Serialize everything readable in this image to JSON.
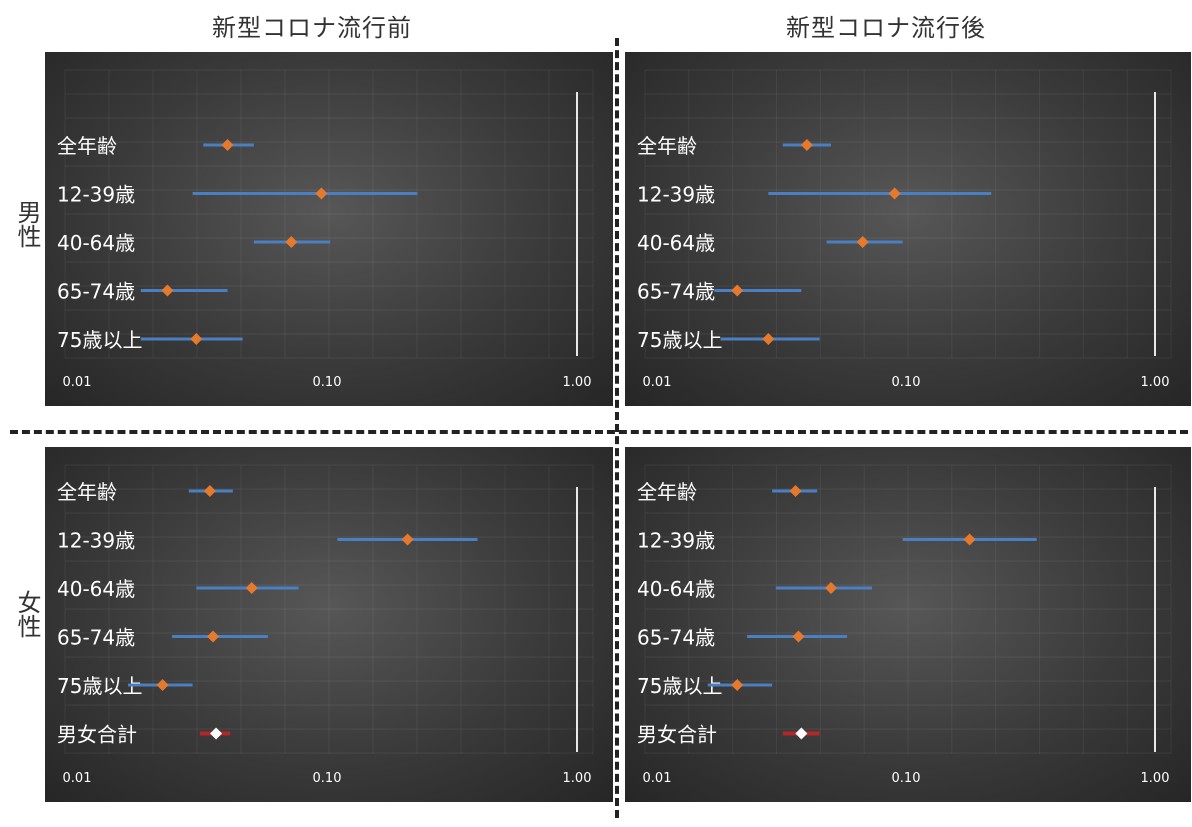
{
  "column_titles": [
    "新型コロナ流行前",
    "新型コロナ流行後"
  ],
  "row_labels": [
    "男性",
    "女性"
  ],
  "colors": {
    "ci_line": "#4a7fc1",
    "marker_group": "#e57a2e",
    "marker_total": "#ffffff",
    "ci_total": "#b3262a",
    "text": "#ffffff"
  },
  "chart_data": [
    {
      "type": "forest",
      "scale": "log",
      "xlim": [
        0.01,
        1.0
      ],
      "xticks": [
        "0.01",
        "0.10",
        "1.00"
      ],
      "categories": [
        "全年齢",
        "12-39歳",
        "40-64歳",
        "65-74歳",
        "75歳以上"
      ],
      "points": [
        {
          "label": "全年齢",
          "value": 0.04,
          "low": 0.032,
          "high": 0.051
        },
        {
          "label": "12-39歳",
          "value": 0.095,
          "low": 0.029,
          "high": 0.23
        },
        {
          "label": "40-64歳",
          "value": 0.072,
          "low": 0.051,
          "high": 0.103
        },
        {
          "label": "65-74歳",
          "value": 0.023,
          "low": 0.018,
          "high": 0.04
        },
        {
          "label": "75歳以上",
          "value": 0.03,
          "low": 0.018,
          "high": 0.046
        }
      ]
    },
    {
      "type": "forest",
      "scale": "log",
      "xlim": [
        0.01,
        1.0
      ],
      "xticks": [
        "0.01",
        "0.10",
        "1.00"
      ],
      "categories": [
        "全年齢",
        "12-39歳",
        "40-64歳",
        "65-74歳",
        "75歳以上"
      ],
      "points": [
        {
          "label": "全年齢",
          "value": 0.04,
          "low": 0.032,
          "high": 0.05
        },
        {
          "label": "12-39歳",
          "value": 0.09,
          "low": 0.028,
          "high": 0.22
        },
        {
          "label": "40-64歳",
          "value": 0.067,
          "low": 0.048,
          "high": 0.097
        },
        {
          "label": "65-74歳",
          "value": 0.021,
          "low": 0.017,
          "high": 0.038
        },
        {
          "label": "75歳以上",
          "value": 0.028,
          "low": 0.018,
          "high": 0.045
        }
      ]
    },
    {
      "type": "forest",
      "scale": "log",
      "xlim": [
        0.01,
        1.0
      ],
      "xticks": [
        "0.01",
        "0.10",
        "1.00"
      ],
      "categories": [
        "全年齢",
        "12-39歳",
        "40-64歳",
        "65-74歳",
        "75歳以上",
        "男女合計"
      ],
      "points": [
        {
          "label": "全年齢",
          "value": 0.034,
          "low": 0.028,
          "high": 0.042
        },
        {
          "label": "12-39歳",
          "value": 0.21,
          "low": 0.11,
          "high": 0.4
        },
        {
          "label": "40-64歳",
          "value": 0.05,
          "low": 0.03,
          "high": 0.077
        },
        {
          "label": "65-74歳",
          "value": 0.035,
          "low": 0.024,
          "high": 0.058
        },
        {
          "label": "75歳以上",
          "value": 0.022,
          "low": 0.016,
          "high": 0.029
        },
        {
          "label": "男女合計",
          "value": 0.036,
          "low": 0.031,
          "high": 0.041,
          "total": true
        }
      ]
    },
    {
      "type": "forest",
      "scale": "log",
      "xlim": [
        0.01,
        1.0
      ],
      "xticks": [
        "0.01",
        "0.10",
        "1.00"
      ],
      "categories": [
        "全年齢",
        "12-39歳",
        "40-64歳",
        "65-74歳",
        "75歳以上",
        "男女合計"
      ],
      "points": [
        {
          "label": "全年齢",
          "value": 0.036,
          "low": 0.029,
          "high": 0.044
        },
        {
          "label": "12-39歳",
          "value": 0.18,
          "low": 0.097,
          "high": 0.335
        },
        {
          "label": "40-64歳",
          "value": 0.05,
          "low": 0.03,
          "high": 0.073
        },
        {
          "label": "65-74歳",
          "value": 0.037,
          "low": 0.023,
          "high": 0.058
        },
        {
          "label": "75歳以上",
          "value": 0.021,
          "low": 0.016,
          "high": 0.029
        },
        {
          "label": "男女合計",
          "value": 0.038,
          "low": 0.032,
          "high": 0.045,
          "total": true
        }
      ]
    }
  ]
}
